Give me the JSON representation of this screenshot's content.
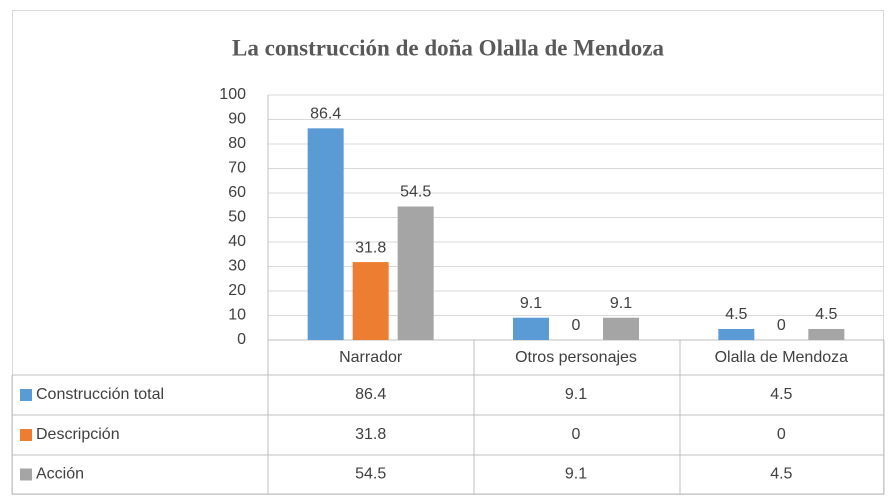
{
  "chart_data": {
    "type": "bar",
    "title": "La construcción de doña Olalla de Mendoza",
    "categories": [
      "Narrador",
      "Otros personajes",
      "Olalla de Mendoza"
    ],
    "series": [
      {
        "name": "Construcción total",
        "color": "#5b9bd5",
        "values": [
          86.4,
          9.1,
          4.5
        ]
      },
      {
        "name": "Descripción",
        "color": "#ed7d31",
        "values": [
          31.8,
          0,
          0
        ]
      },
      {
        "name": "Acción",
        "color": "#a5a5a5",
        "values": [
          54.5,
          9.1,
          4.5
        ]
      }
    ],
    "ylim": [
      0,
      100
    ],
    "yticks": [
      0,
      10,
      20,
      30,
      40,
      50,
      60,
      70,
      80,
      90,
      100
    ],
    "grid": true
  }
}
